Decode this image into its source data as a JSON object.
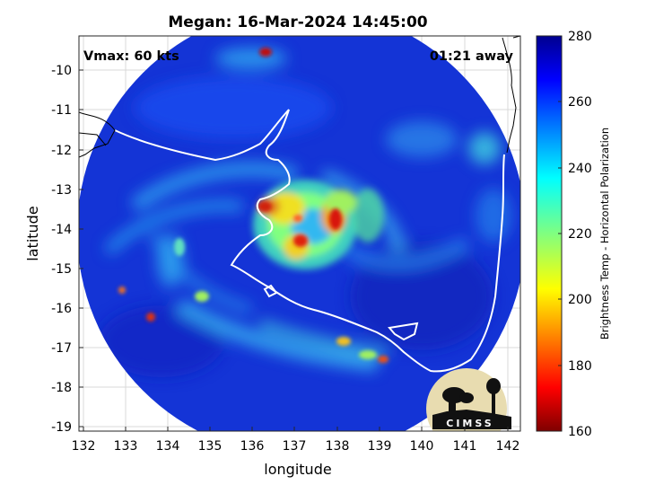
{
  "title": "Megan: 16-Mar-2024 14:45:00",
  "annotations": {
    "vmax": "Vmax: 60 kts",
    "time_away": "01:21 away"
  },
  "axes": {
    "xlabel": "longitude",
    "ylabel": "latitude",
    "xticks": [
      "132",
      "133",
      "134",
      "135",
      "136",
      "137",
      "138",
      "139",
      "140",
      "141",
      "142"
    ],
    "yticks": [
      "-10",
      "-11",
      "-12",
      "-13",
      "-14",
      "-15",
      "-16",
      "-17",
      "-18",
      "-19"
    ]
  },
  "colorbar": {
    "label": "Brightness Temp - Horizontal Polarization",
    "ticks": [
      "280",
      "260",
      "240",
      "220",
      "200",
      "180",
      "160"
    ],
    "range": [
      160,
      280
    ],
    "colormap": "jet"
  },
  "logo": {
    "text": "CIMSS"
  },
  "colors": {
    "coastline": "#ffffff",
    "background_field": "#1030d8",
    "eye_wall": "#d81808"
  }
}
